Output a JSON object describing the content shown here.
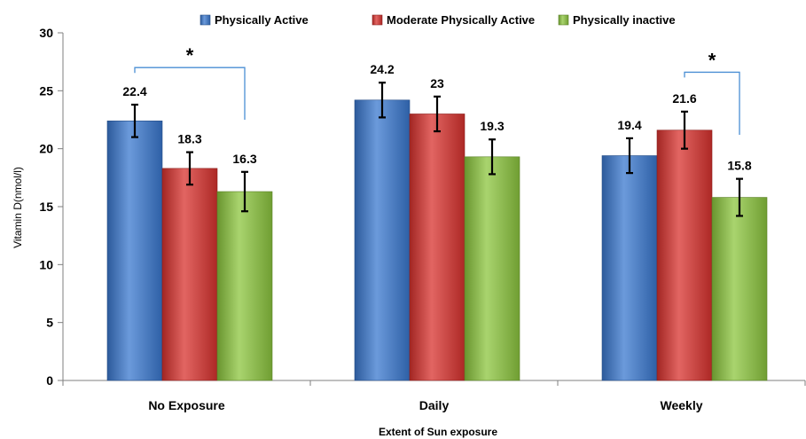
{
  "chart_data": {
    "type": "bar",
    "title": "",
    "xlabel": "Extent of Sun exposure",
    "ylabel": "Vitamin D(nmol/l)",
    "ylim": [
      0,
      30
    ],
    "yticks": [
      0,
      5,
      10,
      15,
      20,
      25,
      30
    ],
    "grid": false,
    "legend": "top",
    "categories": [
      "No Exposure",
      "Daily",
      "Weekly"
    ],
    "series": [
      {
        "name": "Physically Active",
        "color": "#3a78cf",
        "values": [
          22.4,
          24.2,
          19.4
        ],
        "error": [
          1.4,
          1.5,
          1.5
        ],
        "labels": [
          "22.4",
          "24.2",
          "19.4"
        ]
      },
      {
        "name": "Moderate Physically Active",
        "color": "#d8322e",
        "values": [
          18.3,
          23,
          21.6
        ],
        "error": [
          1.4,
          1.5,
          1.6
        ],
        "labels": [
          "18.3",
          "23",
          "21.6"
        ]
      },
      {
        "name": "Physically inactive",
        "color": "#8cc63e",
        "values": [
          16.3,
          19.3,
          15.8
        ],
        "error": [
          1.7,
          1.5,
          1.6
        ],
        "labels": [
          "16.3",
          "19.3",
          "15.8"
        ]
      }
    ],
    "annotations": [
      {
        "text": "*",
        "category": 0,
        "from_series": 0,
        "to_series": 2,
        "bracket_y": 27,
        "drop_to": 22.5
      },
      {
        "text": "*",
        "category": 2,
        "from_series": 1,
        "to_series": 2,
        "bracket_y": 26.6,
        "drop_to": 21.2
      }
    ]
  }
}
